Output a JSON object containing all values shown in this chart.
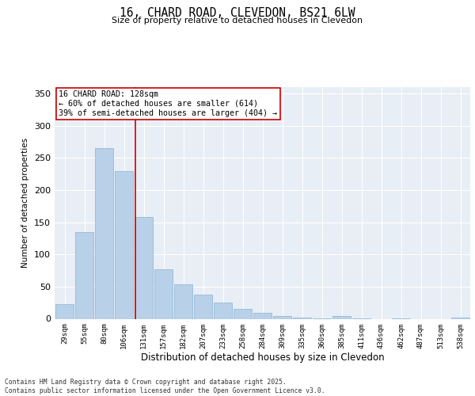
{
  "title_line1": "16, CHARD ROAD, CLEVEDON, BS21 6LW",
  "title_line2": "Size of property relative to detached houses in Clevedon",
  "xlabel": "Distribution of detached houses by size in Clevedon",
  "ylabel": "Number of detached properties",
  "categories": [
    "29sqm",
    "55sqm",
    "80sqm",
    "106sqm",
    "131sqm",
    "157sqm",
    "182sqm",
    "207sqm",
    "233sqm",
    "258sqm",
    "284sqm",
    "309sqm",
    "335sqm",
    "360sqm",
    "385sqm",
    "411sqm",
    "436sqm",
    "462sqm",
    "487sqm",
    "513sqm",
    "538sqm"
  ],
  "values": [
    23,
    135,
    265,
    230,
    158,
    77,
    53,
    37,
    25,
    15,
    9,
    4,
    2,
    1,
    4,
    1,
    0,
    1,
    0,
    0,
    2
  ],
  "bar_color": "#b8d0e8",
  "bar_edge_color": "#8ab4d4",
  "background_color": "#e8eef5",
  "grid_color": "#ffffff",
  "vline_color": "#cc0000",
  "vline_x": 3.57,
  "annotation_text": "16 CHARD ROAD: 128sqm\n← 60% of detached houses are smaller (614)\n39% of semi-detached houses are larger (404) →",
  "annotation_box_color": "#ffffff",
  "annotation_box_edge_color": "#cc0000",
  "footer_text": "Contains HM Land Registry data © Crown copyright and database right 2025.\nContains public sector information licensed under the Open Government Licence v3.0.",
  "ylim": [
    0,
    360
  ],
  "yticks": [
    0,
    50,
    100,
    150,
    200,
    250,
    300,
    350
  ]
}
